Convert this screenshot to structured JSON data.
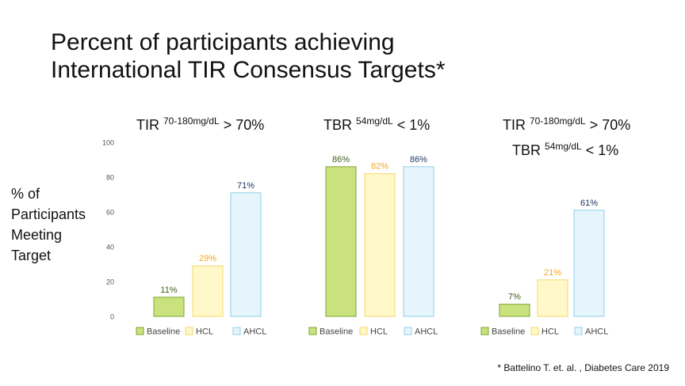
{
  "title_lines": [
    "Percent of participants achieving",
    "International TIR Consensus Targets*"
  ],
  "ylabel_lines": [
    "% of",
    "Participants",
    "Meeting",
    "Target"
  ],
  "headings": {
    "left": {
      "prefix": "TIR ",
      "sup": "70-180mg/dL",
      "suffix": " > 70%"
    },
    "middle": {
      "prefix": "TBR ",
      "sup": "54mg/dL",
      "suffix": " < 1%"
    },
    "right_line1": {
      "prefix": "TIR ",
      "sup": "70-180mg/dL",
      "suffix": " > 70%"
    },
    "right_line2": {
      "prefix": "TBR ",
      "sup": "54mg/dL",
      "suffix": " < 1%"
    }
  },
  "citation": "* Battelino T. et. al. , Diabetes Care 2019",
  "colors": {
    "Baseline": {
      "fill": "#c9e27d",
      "stroke": "#7ea331",
      "label": "#3f5f1d"
    },
    "HCL": {
      "fill": "#fff8c9",
      "stroke": "#f6d96b",
      "label": "#f1a81f"
    },
    "AHCL": {
      "fill": "#e6f5fb",
      "stroke": "#8fd0ea",
      "label": "#1f3864"
    }
  },
  "chart_data": [
    {
      "type": "bar",
      "title": "TIR 70-180mg/dL > 70%",
      "categories": [
        "Baseline",
        "HCL",
        "AHCL"
      ],
      "values": [
        11,
        29,
        71
      ],
      "data_labels": [
        "11%",
        "29%",
        "71%"
      ],
      "ylim": [
        0,
        100
      ],
      "yticks": [
        0,
        20,
        40,
        60,
        80,
        100
      ],
      "ylabel": "% of Participants Meeting Target",
      "legend": [
        "Baseline",
        "HCL",
        "AHCL"
      ],
      "legend_position": "bottom",
      "grid": false
    },
    {
      "type": "bar",
      "title": "TBR 54mg/dL < 1%",
      "categories": [
        "Baseline",
        "HCL",
        "AHCL"
      ],
      "values": [
        86,
        82,
        86
      ],
      "data_labels": [
        "86%",
        "82%",
        "86%"
      ],
      "ylim": [
        0,
        100
      ],
      "legend": [
        "Baseline",
        "HCL",
        "AHCL"
      ],
      "legend_position": "bottom",
      "grid": false
    },
    {
      "type": "bar",
      "title": "TIR 70-180mg/dL > 70% TBR 54mg/dL < 1%",
      "categories": [
        "Baseline",
        "HCL",
        "AHCL"
      ],
      "values": [
        7,
        21,
        61
      ],
      "data_labels": [
        "7%",
        "21%",
        "61%"
      ],
      "ylim": [
        0,
        100
      ],
      "legend": [
        "Baseline",
        "HCL",
        "AHCL"
      ],
      "legend_position": "bottom",
      "grid": false
    }
  ]
}
